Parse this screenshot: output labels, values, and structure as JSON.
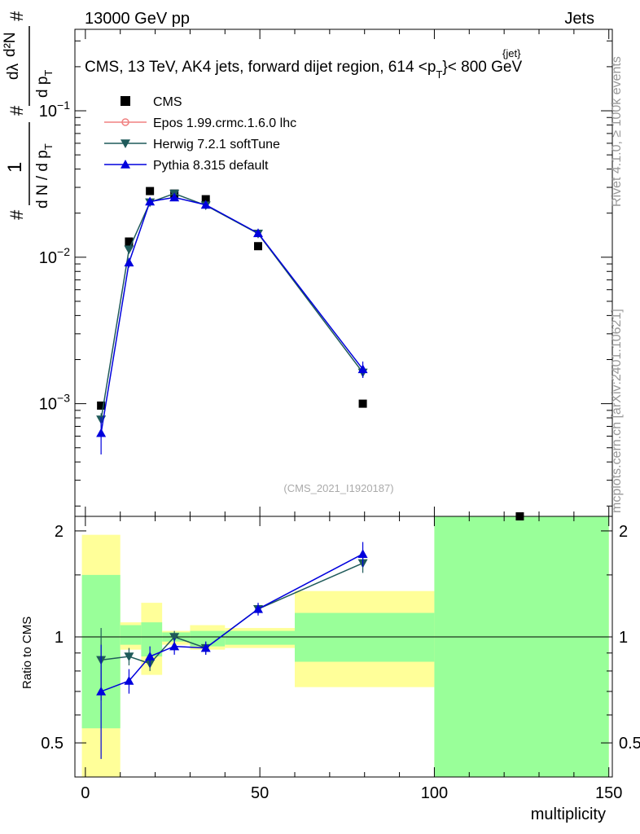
{
  "header": {
    "top_left": "13000 GeV pp",
    "top_right": "Jets",
    "title": "CMS, 13 TeV, AK4 jets, forward dijet region, 614 <p",
    "title_sup": "{jet}",
    "title_sub": "T",
    "title_tail": "}< 800 GeV",
    "watermark": "(CMS_2021_I1920187)",
    "side_rivet": "Rivet 4.1.0, ≥ 100k events",
    "side_site": "mcplots.cern.ch [arXiv:2401.10621]"
  },
  "ylabel_main": {
    "hash1": "#",
    "one": "1",
    "dN": "d N / d p",
    "dN_sub": "T",
    "hash2": "#",
    "dpT": "d p",
    "dpT_sub": "T",
    "d2N": "d²N",
    "dlambda": "dλ",
    "hash3": "#"
  },
  "ratio_ylabel": "Ratio to CMS",
  "xlabel": "multiplicity",
  "legend": [
    {
      "label": "CMS",
      "color": "#000000",
      "marker": "square"
    },
    {
      "label": "Epos 1.99.crmc.1.6.0 lhc",
      "color": "#f08080",
      "marker": "open-circle"
    },
    {
      "label": "Herwig 7.2.1 softTune",
      "color": "#1f5a5a",
      "marker": "triangle-down"
    },
    {
      "label": "Pythia 8.315 default",
      "color": "#0000dd",
      "marker": "triangle-up"
    }
  ],
  "colors": {
    "band_inner": "#99ff99",
    "band_outer": "#ffff99"
  },
  "chart_data": {
    "type": "line",
    "title": "CMS, 13 TeV, AK4 jets, forward dijet region, 614 <pT{jet}< 800 GeV",
    "xlabel": "multiplicity",
    "ylabel": "(1/dN/dpT) d²N/dpT dλ",
    "xlim": [
      -3,
      151
    ],
    "ylim": [
      0.00017,
      0.36
    ],
    "yscale": "log",
    "x_ticks": [
      0,
      50,
      100,
      150
    ],
    "y_ticks": [
      {
        "v": 0.001,
        "base": "10",
        "exp": "−3"
      },
      {
        "v": 0.01,
        "base": "10",
        "exp": "−2"
      },
      {
        "v": 0.1,
        "base": "10",
        "exp": "−1"
      }
    ],
    "cms": {
      "x": [
        4.5,
        12.5,
        18.5,
        25.5,
        34.5,
        49.5,
        79.5,
        124.5
      ],
      "y": [
        0.00097,
        0.0128,
        0.0283,
        0.0272,
        0.0249,
        0.0119,
        0.001,
        0.00017
      ]
    },
    "series": [
      {
        "name": "Herwig 7.2.1 softTune",
        "x": [
          4.5,
          12.5,
          18.5,
          25.5,
          34.5,
          49.5,
          79.5
        ],
        "y": [
          0.00078,
          0.0113,
          0.0237,
          0.0272,
          0.0226,
          0.0145,
          0.00163
        ],
        "err": [
          8e-05,
          0.0004,
          0.0005,
          0.0005,
          0.0005,
          0.0004,
          0.00013
        ]
      },
      {
        "name": "Pythia 8.315 default",
        "x": [
          4.5,
          12.5,
          18.5,
          25.5,
          34.5,
          49.5,
          79.5
        ],
        "y": [
          0.00063,
          0.0092,
          0.024,
          0.0256,
          0.0228,
          0.0146,
          0.00172
        ],
        "err": [
          0.00018,
          0.0007,
          0.0008,
          0.0007,
          0.0006,
          0.0004,
          0.00022
        ]
      }
    ],
    "ratio": {
      "ylabel": "Ratio to CMS",
      "ylim": [
        0.4,
        2.2
      ],
      "y_ticks": [
        0.5,
        1,
        2
      ],
      "bands": [
        {
          "x0": -1,
          "x1": 10,
          "inner": [
            0.55,
            1.5
          ],
          "outer": [
            0.3,
            1.95
          ]
        },
        {
          "x0": 10,
          "x1": 16,
          "inner": [
            0.95,
            1.08
          ],
          "outer": [
            0.92,
            1.1
          ]
        },
        {
          "x0": 16,
          "x1": 22,
          "inner": [
            0.88,
            1.1
          ],
          "outer": [
            0.78,
            1.25
          ]
        },
        {
          "x0": 22,
          "x1": 30,
          "inner": [
            0.97,
            1.03
          ],
          "outer": [
            0.95,
            1.04
          ]
        },
        {
          "x0": 30,
          "x1": 40,
          "inner": [
            0.94,
            1.04
          ],
          "outer": [
            0.92,
            1.08
          ]
        },
        {
          "x0": 40,
          "x1": 60,
          "inner": [
            0.95,
            1.04
          ],
          "outer": [
            0.93,
            1.06
          ]
        },
        {
          "x0": 60,
          "x1": 100,
          "inner": [
            0.85,
            1.17
          ],
          "outer": [
            0.72,
            1.35
          ]
        },
        {
          "x0": 100,
          "x1": 150,
          "inner": [
            0.3,
            2.5
          ],
          "outer": [
            0.3,
            2.5
          ]
        }
      ],
      "series": [
        {
          "name": "Herwig 7.2.1 softTune",
          "x": [
            4.5,
            12.5,
            18.5,
            25.5,
            34.5,
            49.5,
            79.5
          ],
          "y": [
            0.86,
            0.88,
            0.84,
            1.0,
            0.93,
            1.2,
            1.62
          ],
          "err": [
            0.2,
            0.05,
            0.04,
            0.04,
            0.04,
            0.04,
            0.1
          ]
        },
        {
          "name": "Pythia 8.315 default",
          "x": [
            4.5,
            12.5,
            18.5,
            25.5,
            34.5,
            49.5,
            79.5
          ],
          "y": [
            0.7,
            0.75,
            0.88,
            0.94,
            0.93,
            1.2,
            1.72
          ],
          "err": [
            0.25,
            0.06,
            0.06,
            0.05,
            0.04,
            0.05,
            0.14
          ]
        }
      ]
    }
  }
}
